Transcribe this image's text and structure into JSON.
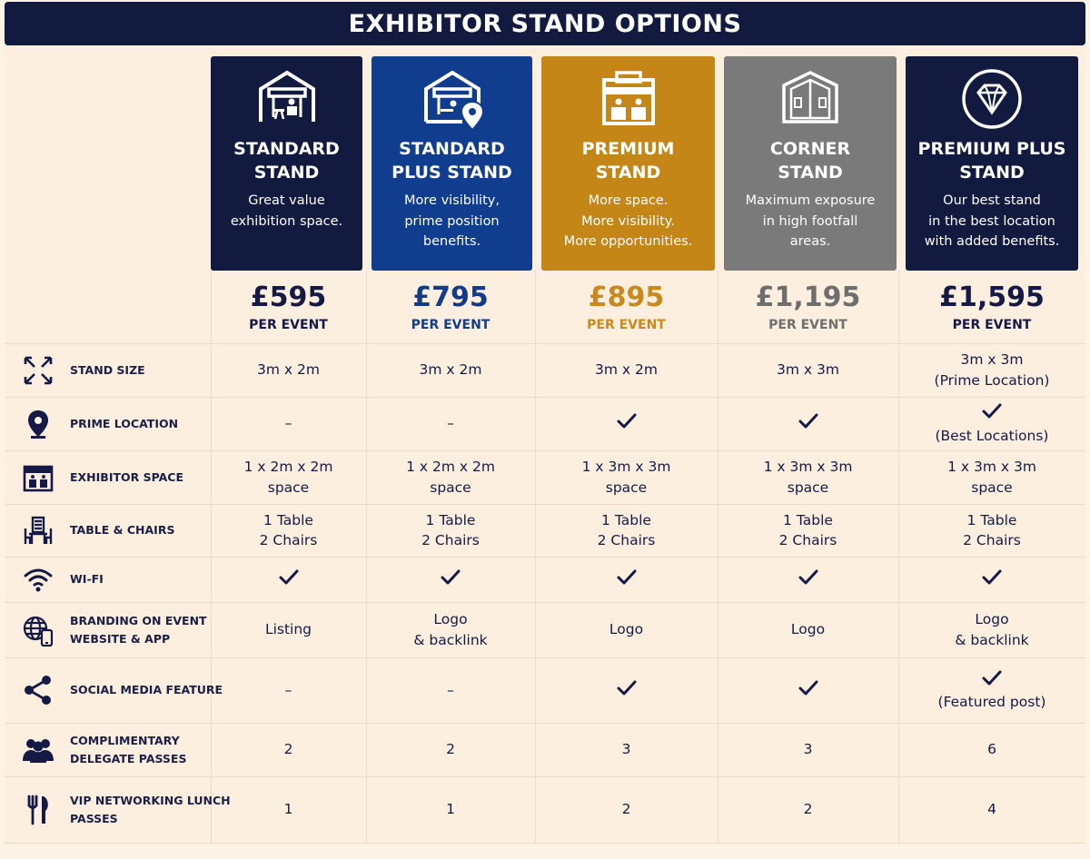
{
  "title": "EXHIBITOR STAND OPTIONS",
  "colors": {
    "navy": "#121a3f",
    "blue": "#103d8d",
    "gold": "#c48717",
    "grey": "#7a7a7a",
    "dark": "#141a45",
    "cream": "#fcefdf"
  },
  "stands": [
    {
      "title": "STANDARD\nSTAND",
      "description": "Great value\nexhibition space.",
      "price": "£595",
      "per": "PER EVENT",
      "color": "#121a3f",
      "price_color": "#141a45",
      "icon": "stand-booth-icon"
    },
    {
      "title": "STANDARD\nPLUS STAND",
      "description": "More visibility,\nprime position\nbenefits.",
      "price": "£795",
      "per": "PER EVENT",
      "color": "#103d8d",
      "price_color": "#123c86",
      "icon": "stand-location-icon"
    },
    {
      "title": "PREMIUM\nSTAND",
      "description": "More space.\nMore visibility.\nMore opportunities.",
      "price": "£895",
      "per": "PER EVENT",
      "color": "#c48717",
      "price_color": "#c9891c",
      "icon": "premium-booth-icon"
    },
    {
      "title": "CORNER\nSTAND",
      "description": "Maximum exposure\nin high footfall\nareas.",
      "price": "£1,195",
      "per": "PER EVENT",
      "color": "#7a7a7a",
      "price_color": "#6e6e6e",
      "icon": "corner-room-icon"
    },
    {
      "title": "PREMIUM PLUS\nSTAND",
      "description": "Our best stand\nin the best location\nwith added benefits.",
      "price": "£1,595",
      "per": "PER EVENT",
      "color": "#121a3f",
      "price_color": "#141a45",
      "icon": "diamond-icon"
    }
  ],
  "features": [
    {
      "label": "STAND SIZE",
      "icon": "expand-arrows-icon",
      "values": [
        "3m x 2m",
        "3m x 2m",
        "3m x 2m",
        "3m x 3m",
        "3m x 3m\n(Prime Location)"
      ]
    },
    {
      "label": "PRIME LOCATION",
      "icon": "location-pin-icon",
      "values": [
        "–",
        "–",
        "check",
        "check",
        "check\n(Best Locations)"
      ]
    },
    {
      "label": "EXHIBITOR SPACE",
      "icon": "booth-icon",
      "values": [
        "1 x 2m x 2m\nspace",
        "1 x 2m x 2m\nspace",
        "1 x 3m x 3m\nspace",
        "1 x 3m x 3m\nspace",
        "1 x 3m x 3m\nspace"
      ]
    },
    {
      "label": "TABLE & CHAIRS",
      "icon": "table-chairs-icon",
      "values": [
        "1 Table\n2 Chairs",
        "1 Table\n2 Chairs",
        "1 Table\n2 Chairs",
        "1 Table\n2 Chairs",
        "1 Table\n2 Chairs"
      ]
    },
    {
      "label": "WI-FI",
      "icon": "wifi-icon",
      "values": [
        "check",
        "check",
        "check",
        "check",
        "check"
      ]
    },
    {
      "label": "BRANDING ON EVENT\nWEBSITE & APP",
      "icon": "globe-phone-icon",
      "values": [
        "Listing",
        "Logo\n& backlink",
        "Logo",
        "Logo",
        "Logo\n& backlink"
      ]
    },
    {
      "label": "SOCIAL MEDIA FEATURE",
      "icon": "share-icon",
      "values": [
        "–",
        "–",
        "check",
        "check",
        "check\n(Featured post)"
      ]
    },
    {
      "label": "COMPLIMENTARY\nDELEGATE PASSES",
      "icon": "people-icon",
      "values": [
        "2",
        "2",
        "3",
        "3",
        "6"
      ]
    },
    {
      "label": "VIP NETWORKING LUNCH\nPASSES",
      "icon": "fork-knife-icon",
      "values": [
        "1",
        "1",
        "2",
        "2",
        "4"
      ]
    }
  ]
}
